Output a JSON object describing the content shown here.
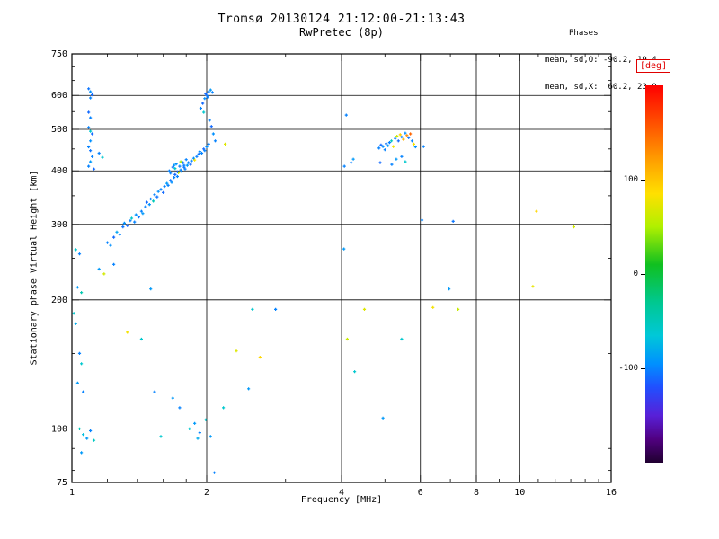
{
  "header": {
    "title": "Tromsø 20130124 21:12:00-21:13:43",
    "subtitle": "RwPretec (8p)"
  },
  "stats": {
    "header": "Phases",
    "o_line": "mean, sd,O: -90.2, 19.4",
    "x_line": "mean, sd,X:  60.2, 23.0"
  },
  "axes": {
    "xlabel": "Frequency [MHz]",
    "ylabel": "Stationary phase Virtual Height [km]",
    "x_scale": "log",
    "y_scale": "log",
    "x_range": [
      1,
      16
    ],
    "y_range": [
      75,
      750
    ],
    "x_ticks": [
      1,
      2,
      4,
      6,
      8,
      10,
      16
    ],
    "x_minor_ticks": [
      1.2,
      1.4,
      1.6,
      1.8,
      3,
      5,
      7,
      9,
      11,
      12,
      13,
      14,
      15
    ],
    "y_ticks": [
      75,
      100,
      200,
      300,
      400,
      500,
      600,
      750
    ],
    "y_minor_ticks": [
      80,
      90,
      150,
      250,
      350,
      450,
      550,
      650,
      700
    ],
    "grid_x": [
      2,
      4,
      6,
      8,
      10
    ],
    "grid_y": [
      100,
      200,
      300,
      400,
      500,
      600
    ]
  },
  "colorbar": {
    "label": "[deg]",
    "ticks": [
      100,
      0,
      -100
    ],
    "range": [
      -200,
      200
    ],
    "stops": [
      {
        "v": 200,
        "c": "#ff0000"
      },
      {
        "v": 160,
        "c": "#ff5000"
      },
      {
        "v": 120,
        "c": "#ffa000"
      },
      {
        "v": 85,
        "c": "#ffe000"
      },
      {
        "v": 50,
        "c": "#b0f000"
      },
      {
        "v": 10,
        "c": "#10c020"
      },
      {
        "v": -30,
        "c": "#00c890"
      },
      {
        "v": -65,
        "c": "#00c8d8"
      },
      {
        "v": -95,
        "c": "#0090ff"
      },
      {
        "v": -120,
        "c": "#2050ff"
      },
      {
        "v": -150,
        "c": "#5820d8"
      },
      {
        "v": -175,
        "c": "#500080"
      },
      {
        "v": -200,
        "c": "#200030"
      }
    ]
  },
  "chart_data": {
    "type": "scatter",
    "title": "Tromsø 20130124 21:12:00-21:13:43",
    "subtitle": "RwPretec (8p)",
    "xlabel": "Frequency [MHz]",
    "ylabel": "Stationary phase Virtual Height [km]",
    "xlim": [
      1,
      16
    ],
    "ylim": [
      75,
      750
    ],
    "x_scale": "log",
    "y_scale": "log",
    "color_label": "[deg]",
    "color_range": [
      -200,
      200
    ],
    "point_format": [
      "freq_MHz",
      "height_km",
      "phase_deg"
    ],
    "points": [
      [
        1.2,
        272,
        -100
      ],
      [
        1.22,
        268,
        -95
      ],
      [
        1.24,
        280,
        -110
      ],
      [
        1.26,
        288,
        -85
      ],
      [
        1.28,
        284,
        -100
      ],
      [
        1.3,
        296,
        -105
      ],
      [
        1.31,
        302,
        -95
      ],
      [
        1.33,
        298,
        -110
      ],
      [
        1.35,
        306,
        -100
      ],
      [
        1.36,
        310,
        -60
      ],
      [
        1.38,
        304,
        -100
      ],
      [
        1.39,
        316,
        -95
      ],
      [
        1.41,
        312,
        -105
      ],
      [
        1.43,
        322,
        -100
      ],
      [
        1.44,
        318,
        -90
      ],
      [
        1.46,
        330,
        -100
      ],
      [
        1.47,
        338,
        -110
      ],
      [
        1.49,
        334,
        -95
      ],
      [
        1.5,
        344,
        -100
      ],
      [
        1.52,
        340,
        -50
      ],
      [
        1.53,
        352,
        -100
      ],
      [
        1.55,
        348,
        -105
      ],
      [
        1.56,
        358,
        -95
      ],
      [
        1.58,
        362,
        -100
      ],
      [
        1.6,
        356,
        -110
      ],
      [
        1.61,
        368,
        -100
      ],
      [
        1.63,
        374,
        -90
      ],
      [
        1.64,
        370,
        -100
      ],
      [
        1.66,
        380,
        -105
      ],
      [
        1.67,
        376,
        -95
      ],
      [
        1.69,
        386,
        -100
      ],
      [
        1.7,
        392,
        -110
      ],
      [
        1.72,
        388,
        -100
      ],
      [
        1.73,
        396,
        60
      ],
      [
        1.75,
        402,
        -100
      ],
      [
        1.76,
        398,
        -95
      ],
      [
        1.78,
        408,
        -105
      ],
      [
        1.79,
        404,
        -100
      ],
      [
        1.81,
        412,
        -90
      ],
      [
        1.82,
        418,
        -100
      ],
      [
        1.84,
        414,
        -110
      ],
      [
        1.85,
        422,
        -100
      ],
      [
        1.87,
        428,
        -95
      ],
      [
        1.88,
        424,
        80
      ],
      [
        1.9,
        432,
        -100
      ],
      [
        1.92,
        438,
        -105
      ],
      [
        1.93,
        444,
        -95
      ],
      [
        1.95,
        440,
        -100
      ],
      [
        1.97,
        450,
        -110
      ],
      [
        1.98,
        446,
        -100
      ],
      [
        2.0,
        455,
        -95
      ],
      [
        2.02,
        462,
        -100
      ],
      [
        1.65,
        400,
        -100
      ],
      [
        1.68,
        408,
        -110
      ],
      [
        1.71,
        415,
        -95
      ],
      [
        1.74,
        410,
        -100
      ],
      [
        1.77,
        418,
        -105
      ],
      [
        1.8,
        425,
        -100
      ],
      [
        1.7,
        405,
        -60
      ],
      [
        1.66,
        395,
        -100
      ],
      [
        1.72,
        398,
        -110
      ],
      [
        1.78,
        412,
        -100
      ],
      [
        1.75,
        420,
        45
      ],
      [
        1.69,
        412,
        -90
      ],
      [
        1.94,
        560,
        -100
      ],
      [
        1.96,
        575,
        -110
      ],
      [
        1.98,
        590,
        -95
      ],
      [
        2.0,
        600,
        -105
      ],
      [
        2.02,
        612,
        -100
      ],
      [
        2.04,
        618,
        -90
      ],
      [
        1.99,
        605,
        -110
      ],
      [
        2.01,
        595,
        -100
      ],
      [
        1.97,
        548,
        -60
      ],
      [
        2.03,
        525,
        -100
      ],
      [
        2.05,
        508,
        -110
      ],
      [
        2.07,
        488,
        -95
      ],
      [
        2.09,
        470,
        -100
      ],
      [
        2.06,
        610,
        -100
      ],
      [
        2.2,
        462,
        70
      ],
      [
        1.09,
        622,
        -105
      ],
      [
        1.1,
        612,
        -95
      ],
      [
        1.11,
        602,
        -110
      ],
      [
        1.1,
        592,
        -100
      ],
      [
        1.09,
        548,
        -110
      ],
      [
        1.1,
        532,
        -100
      ],
      [
        1.09,
        505,
        -100
      ],
      [
        1.1,
        495,
        -60
      ],
      [
        1.11,
        488,
        -110
      ],
      [
        1.1,
        470,
        -95
      ],
      [
        1.09,
        455,
        -100
      ],
      [
        1.1,
        446,
        -105
      ],
      [
        1.11,
        432,
        -100
      ],
      [
        1.1,
        420,
        -90
      ],
      [
        1.09,
        410,
        -100
      ],
      [
        1.12,
        404,
        -110
      ],
      [
        1.15,
        440,
        -100
      ],
      [
        1.17,
        430,
        -60
      ],
      [
        4.85,
        452,
        -100
      ],
      [
        4.9,
        460,
        -110
      ],
      [
        4.95,
        456,
        -95
      ],
      [
        5.0,
        448,
        -100
      ],
      [
        5.03,
        463,
        -105
      ],
      [
        5.08,
        458,
        -90
      ],
      [
        5.12,
        466,
        -100
      ],
      [
        5.17,
        470,
        -55
      ],
      [
        5.22,
        456,
        80
      ],
      [
        5.27,
        476,
        -100
      ],
      [
        5.32,
        482,
        60
      ],
      [
        5.36,
        470,
        -110
      ],
      [
        5.41,
        486,
        95
      ],
      [
        5.45,
        480,
        -100
      ],
      [
        5.5,
        474,
        110
      ],
      [
        5.55,
        490,
        -95
      ],
      [
        5.6,
        484,
        130
      ],
      [
        5.65,
        478,
        -105
      ],
      [
        5.7,
        488,
        150
      ],
      [
        5.45,
        432,
        -100
      ],
      [
        5.3,
        426,
        -90
      ],
      [
        5.55,
        420,
        -60
      ],
      [
        5.18,
        414,
        -100
      ],
      [
        4.88,
        418,
        -110
      ],
      [
        4.2,
        418,
        -100
      ],
      [
        4.25,
        426,
        -90
      ],
      [
        5.75,
        470,
        -100
      ],
      [
        5.8,
        462,
        80
      ],
      [
        5.85,
        455,
        -95
      ],
      [
        4.1,
        540,
        -100
      ],
      [
        4.06,
        410,
        -100
      ],
      [
        6.05,
        307,
        -100
      ],
      [
        7.1,
        305,
        -105
      ],
      [
        10.9,
        322,
        90
      ],
      [
        13.2,
        296,
        65
      ],
      [
        10.7,
        215,
        75
      ],
      [
        1.02,
        262,
        -60
      ],
      [
        1.04,
        256,
        -100
      ],
      [
        1.03,
        214,
        -90
      ],
      [
        1.05,
        208,
        -45
      ],
      [
        1.04,
        150,
        -100
      ],
      [
        1.05,
        142,
        -60
      ],
      [
        1.03,
        128,
        -90
      ],
      [
        1.06,
        122,
        -100
      ],
      [
        1.04,
        100,
        -50
      ],
      [
        1.06,
        97,
        -70
      ],
      [
        1.08,
        95,
        -90
      ],
      [
        1.1,
        99,
        -100
      ],
      [
        1.12,
        94,
        -55
      ],
      [
        1.05,
        88,
        -90
      ],
      [
        1.15,
        236,
        -90
      ],
      [
        1.18,
        230,
        65
      ],
      [
        1.24,
        242,
        -100
      ],
      [
        1.33,
        168,
        80
      ],
      [
        1.43,
        162,
        -60
      ],
      [
        1.5,
        212,
        -90
      ],
      [
        1.53,
        122,
        -100
      ],
      [
        1.58,
        96,
        -60
      ],
      [
        1.68,
        118,
        -90
      ],
      [
        1.74,
        112,
        -100
      ],
      [
        1.83,
        100,
        -60
      ],
      [
        1.88,
        103,
        -90
      ],
      [
        1.93,
        98,
        -100
      ],
      [
        1.99,
        105,
        -60
      ],
      [
        1.91,
        95,
        -80
      ],
      [
        2.08,
        79,
        -100
      ],
      [
        2.04,
        96,
        -90
      ],
      [
        2.18,
        112,
        -60
      ],
      [
        2.33,
        152,
        70
      ],
      [
        2.48,
        124,
        -90
      ],
      [
        2.53,
        190,
        -60
      ],
      [
        2.63,
        147,
        90
      ],
      [
        2.85,
        190,
        -100
      ],
      [
        1.01,
        186,
        -60
      ],
      [
        1.02,
        176,
        -80
      ],
      [
        4.05,
        263,
        -90
      ],
      [
        4.12,
        162,
        60
      ],
      [
        4.28,
        136,
        -60
      ],
      [
        4.5,
        190,
        70
      ],
      [
        4.95,
        106,
        -90
      ],
      [
        5.45,
        162,
        -60
      ],
      [
        6.4,
        192,
        80
      ],
      [
        6.95,
        212,
        -90
      ],
      [
        7.28,
        190,
        60
      ],
      [
        6.1,
        456,
        -100
      ]
    ]
  }
}
